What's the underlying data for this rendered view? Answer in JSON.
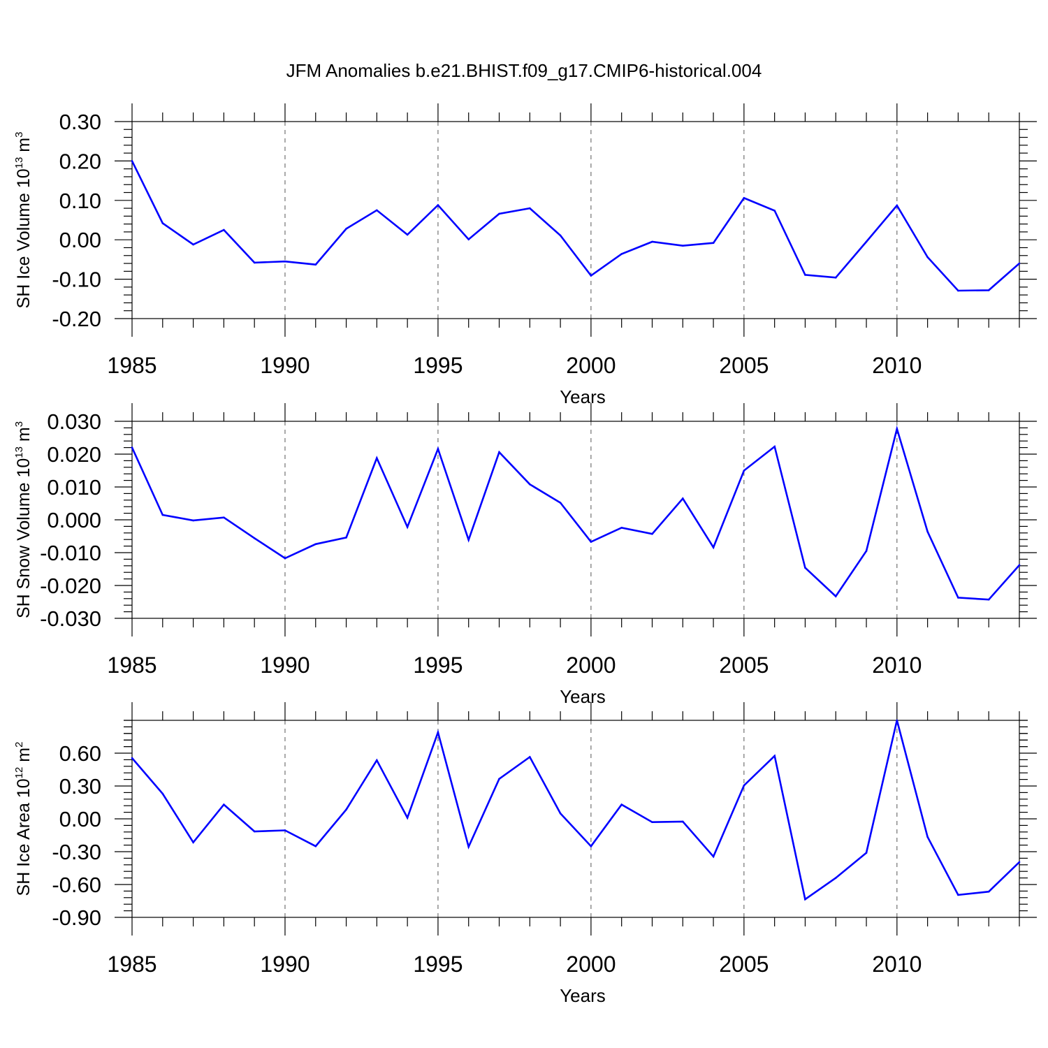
{
  "figure": {
    "title": "JFM Anomalies b.e21.BHIST.f09_g17.CMIP6-historical.004",
    "line_color": "#0000ff",
    "grid_color": "#555555"
  },
  "chart_data": [
    {
      "type": "line",
      "ylabel": "SH Ice Volume 10",
      "ylabel_exp": "13",
      "ylabel_unit": " m",
      "ylabel_unit_exp": "3",
      "xlabel": "Years",
      "xlim": [
        1985,
        2014
      ],
      "ylim": [
        -0.2,
        0.3
      ],
      "xticks": [
        1985,
        1990,
        1995,
        2000,
        2005,
        2010
      ],
      "xtick_labels": [
        "1985",
        "1990",
        "1995",
        "2000",
        "2005",
        "2010"
      ],
      "yticks": [
        0.3,
        0.2,
        0.1,
        0.0,
        -0.1,
        -0.2
      ],
      "ytick_labels": [
        "0.30",
        "0.20",
        "0.10",
        "0.00",
        "-0.10",
        "-0.20"
      ],
      "grid": "vertical dashed at major x ticks",
      "x": [
        1985,
        1986,
        1987,
        1988,
        1989,
        1990,
        1991,
        1992,
        1993,
        1994,
        1995,
        1996,
        1997,
        1998,
        1999,
        2000,
        2001,
        2002,
        2003,
        2004,
        2005,
        2006,
        2007,
        2008,
        2009,
        2010,
        2011,
        2012,
        2013,
        2014
      ],
      "values": [
        0.2,
        0.042,
        -0.012,
        0.025,
        -0.058,
        -0.055,
        -0.063,
        0.028,
        0.075,
        0.013,
        0.088,
        0.001,
        0.066,
        0.08,
        0.011,
        -0.091,
        -0.036,
        -0.005,
        -0.015,
        -0.008,
        0.106,
        0.074,
        -0.089,
        -0.096,
        -0.005,
        0.087,
        -0.044,
        -0.129,
        -0.128,
        -0.06
      ]
    },
    {
      "type": "line",
      "ylabel": "SH Snow Volume 10",
      "ylabel_exp": "13",
      "ylabel_unit": " m",
      "ylabel_unit_exp": "3",
      "xlabel": "Years",
      "xlim": [
        1985,
        2014
      ],
      "ylim": [
        -0.03,
        0.03
      ],
      "xticks": [
        1985,
        1990,
        1995,
        2000,
        2005,
        2010
      ],
      "xtick_labels": [
        "1985",
        "1990",
        "1995",
        "2000",
        "2005",
        "2010"
      ],
      "yticks": [
        0.03,
        0.02,
        0.01,
        0.0,
        -0.01,
        -0.02,
        -0.03
      ],
      "ytick_labels": [
        "0.030",
        "0.020",
        "0.010",
        "0.000",
        "-0.010",
        "-0.020",
        "-0.030"
      ],
      "grid": "vertical dashed at major x ticks",
      "x": [
        1985,
        1986,
        1987,
        1988,
        1989,
        1990,
        1991,
        1992,
        1993,
        1994,
        1995,
        1996,
        1997,
        1998,
        1999,
        2000,
        2001,
        2002,
        2003,
        2004,
        2005,
        2006,
        2007,
        2008,
        2009,
        2010,
        2011,
        2012,
        2013,
        2014
      ],
      "values": [
        0.022,
        0.0015,
        -0.0002,
        0.0007,
        -0.0056,
        -0.0117,
        -0.0074,
        -0.0054,
        0.0188,
        -0.0022,
        0.0216,
        -0.0061,
        0.0206,
        0.0108,
        0.0052,
        -0.0067,
        -0.0024,
        -0.0043,
        0.0065,
        -0.0084,
        0.015,
        0.0223,
        -0.0146,
        -0.0233,
        -0.0095,
        0.0277,
        -0.0036,
        -0.0237,
        -0.0243,
        -0.0138
      ]
    },
    {
      "type": "line",
      "ylabel": "SH Ice Area 10",
      "ylabel_exp": "12",
      "ylabel_unit": " m",
      "ylabel_unit_exp": "2",
      "xlabel": "Years",
      "xlim": [
        1985,
        2014
      ],
      "ylim": [
        -0.9,
        0.9
      ],
      "xticks": [
        1985,
        1990,
        1995,
        2000,
        2005,
        2010
      ],
      "xtick_labels": [
        "1985",
        "1990",
        "1995",
        "2000",
        "2005",
        "2010"
      ],
      "yticks": [
        0.6,
        0.3,
        0.0,
        -0.3,
        -0.6,
        -0.9
      ],
      "ytick_labels": [
        "0.60",
        "0.30",
        "0.00",
        "-0.30",
        "-0.60",
        "-0.90"
      ],
      "grid": "vertical dashed at major x ticks",
      "x": [
        1985,
        1986,
        1987,
        1988,
        1989,
        1990,
        1991,
        1992,
        1993,
        1994,
        1995,
        1996,
        1997,
        1998,
        1999,
        2000,
        2001,
        2002,
        2003,
        2004,
        2005,
        2006,
        2007,
        2008,
        2009,
        2010,
        2011,
        2012,
        2013,
        2014
      ],
      "values": [
        0.555,
        0.23,
        -0.215,
        0.13,
        -0.115,
        -0.105,
        -0.25,
        0.085,
        0.535,
        0.01,
        0.79,
        -0.255,
        0.365,
        0.565,
        0.05,
        -0.25,
        0.13,
        -0.03,
        -0.025,
        -0.345,
        0.305,
        0.575,
        -0.735,
        -0.54,
        -0.31,
        0.9,
        -0.165,
        -0.695,
        -0.665,
        -0.395
      ]
    }
  ]
}
